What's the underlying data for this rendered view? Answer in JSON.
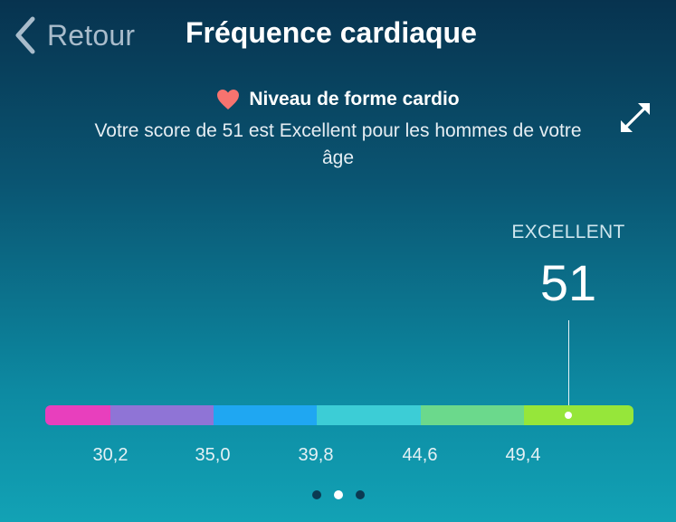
{
  "nav": {
    "back_label": "Retour",
    "title": "Fréquence cardiaque"
  },
  "info": {
    "title": "Niveau de forme cardio",
    "text": "Votre score de 51 est Excellent pour les hommes de votre âge"
  },
  "score": {
    "category": "EXCELLENT",
    "value": "51",
    "marker_position": 0.895
  },
  "scale": {
    "segments": [
      {
        "color": "#e83fbd",
        "weight": 0.11
      },
      {
        "color": "#8f74d6",
        "weight": 0.176
      },
      {
        "color": "#1fa7f2",
        "weight": 0.176
      },
      {
        "color": "#3ccdd6",
        "weight": 0.176
      },
      {
        "color": "#6bd98c",
        "weight": 0.176
      },
      {
        "color": "#96e63a",
        "weight": 0.186
      }
    ],
    "ticks": [
      "30,2",
      "35,0",
      "39,8",
      "44,6",
      "49,4"
    ]
  },
  "pager": {
    "count": 3,
    "active": 1
  },
  "colors": {
    "heart": "#f7736f",
    "back": "#a9bccb"
  },
  "icons": {
    "back": "chevron-left-icon",
    "heart": "heart-icon",
    "expand": "expand-arrows-icon"
  }
}
